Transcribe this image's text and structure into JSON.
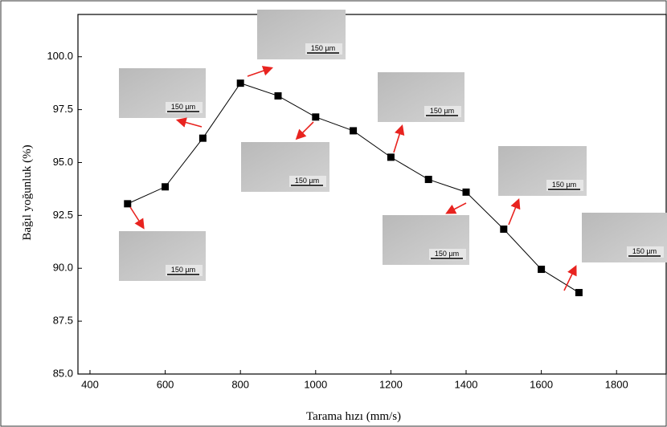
{
  "chart_data": {
    "type": "line",
    "x_label": "Tarama hızı (mm/s)",
    "y_label": "Bağıl yoğunluk (%)",
    "x": [
      500,
      600,
      700,
      800,
      900,
      1000,
      1100,
      1200,
      1300,
      1400,
      1500,
      1600,
      1700
    ],
    "values": [
      93.05,
      93.85,
      96.15,
      98.75,
      98.15,
      97.15,
      96.5,
      95.25,
      94.2,
      93.6,
      91.85,
      89.95,
      88.85
    ],
    "color": "#000000",
    "xlim": [
      368,
      1932
    ],
    "xticks": [
      400,
      600,
      800,
      1000,
      1200,
      1400,
      1600,
      1800
    ],
    "ylim": [
      85,
      102
    ],
    "yticks": [
      {
        "value": 85,
        "label": "85.0"
      },
      {
        "value": 87.5,
        "label": "87.5"
      },
      {
        "value": 90,
        "label": "90.0"
      },
      {
        "value": 92.5,
        "label": "92.5"
      },
      {
        "value": 95,
        "label": "95.0"
      },
      {
        "value": 97.5,
        "label": "97.5"
      },
      {
        "value": 100,
        "label": "100.0"
      }
    ],
    "insets": [
      {
        "scale_label": "150 µm"
      },
      {
        "scale_label": "150 µm"
      },
      {
        "scale_label": "150 µm"
      },
      {
        "scale_label": "150 µm"
      },
      {
        "scale_label": "150 µm"
      },
      {
        "scale_label": "150 µm"
      },
      {
        "scale_label": "150 µm"
      },
      {
        "scale_label": "150 µm"
      }
    ]
  }
}
